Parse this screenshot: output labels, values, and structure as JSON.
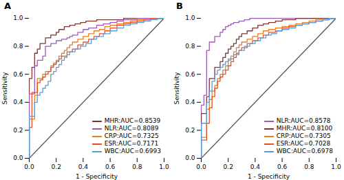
{
  "chart_data": [
    {
      "type": "line",
      "title": "A",
      "xlabel": "1 - Specificity",
      "ylabel": "Sensitivity",
      "xlim": [
        0,
        1
      ],
      "ylim": [
        0,
        1
      ],
      "xticks": [
        {
          "value": 0,
          "label": "0.0"
        },
        0.2,
        0.4,
        0.6,
        0.8,
        {
          "value": 1,
          "label": "1.0"
        }
      ],
      "yticks": [
        {
          "value": 0,
          "label": "0.0"
        },
        0.2,
        0.4,
        0.6,
        0.8,
        {
          "value": 1,
          "label": "1.0"
        }
      ],
      "grid": false,
      "legend": "lower right",
      "series": [
        {
          "type": "line",
          "color": "#555555",
          "x": [
            0,
            1
          ],
          "values": [
            0,
            1
          ]
        },
        {
          "name": "MHR:AUC=0.8539",
          "type": "step",
          "color": "#7B3535",
          "x": [
            0.0,
            0.0,
            0.02,
            0.02,
            0.04,
            0.04,
            0.06,
            0.06,
            0.08,
            0.08,
            0.1,
            0.12,
            0.12,
            0.14,
            0.16,
            0.18,
            0.2,
            0.22,
            0.22,
            0.24,
            0.26,
            0.28,
            0.3,
            0.32,
            0.34,
            0.36,
            0.38,
            0.4,
            0.42,
            0.44,
            0.5,
            0.55,
            0.6,
            0.65,
            0.7,
            0.75,
            0.8,
            0.85,
            0.9,
            0.95,
            1.0
          ],
          "values": [
            0.0,
            0.57,
            0.57,
            0.65,
            0.65,
            0.75,
            0.75,
            0.78,
            0.78,
            0.82,
            0.82,
            0.82,
            0.86,
            0.86,
            0.88,
            0.88,
            0.9,
            0.9,
            0.92,
            0.92,
            0.94,
            0.94,
            0.95,
            0.95,
            0.96,
            0.96,
            0.97,
            0.97,
            0.98,
            0.98,
            0.99,
            0.99,
            0.99,
            0.99,
            1.0,
            1.0,
            1.0,
            1.0,
            1.0,
            1.0,
            1.0
          ]
        },
        {
          "name": "NLR:AUC=0.8089",
          "type": "step",
          "color": "#9B59B6",
          "x": [
            0.0,
            0.0,
            0.02,
            0.04,
            0.04,
            0.06,
            0.06,
            0.08,
            0.1,
            0.1,
            0.12,
            0.12,
            0.14,
            0.16,
            0.18,
            0.2,
            0.22,
            0.24,
            0.26,
            0.28,
            0.3,
            0.32,
            0.36,
            0.4,
            0.44,
            0.5,
            0.55,
            0.6,
            0.65,
            0.7,
            0.75,
            0.8,
            0.85,
            0.9,
            0.95,
            1.0
          ],
          "values": [
            0.0,
            0.46,
            0.46,
            0.46,
            0.66,
            0.66,
            0.7,
            0.7,
            0.7,
            0.73,
            0.73,
            0.8,
            0.8,
            0.82,
            0.82,
            0.84,
            0.84,
            0.85,
            0.85,
            0.86,
            0.87,
            0.88,
            0.9,
            0.92,
            0.93,
            0.95,
            0.96,
            0.97,
            0.98,
            0.99,
            0.99,
            1.0,
            1.0,
            1.0,
            1.0,
            1.0
          ]
        },
        {
          "name": "CRP:AUC=0.7325",
          "type": "step",
          "color": "#E67E22",
          "x": [
            0.0,
            0.0,
            0.02,
            0.04,
            0.06,
            0.06,
            0.08,
            0.1,
            0.12,
            0.14,
            0.16,
            0.18,
            0.2,
            0.22,
            0.24,
            0.26,
            0.28,
            0.3,
            0.32,
            0.36,
            0.4,
            0.44,
            0.48,
            0.52,
            0.56,
            0.6,
            0.65,
            0.7,
            0.75,
            0.8,
            0.85,
            0.9,
            0.95,
            1.0
          ],
          "values": [
            0.0,
            0.28,
            0.28,
            0.45,
            0.45,
            0.57,
            0.57,
            0.6,
            0.62,
            0.62,
            0.66,
            0.68,
            0.7,
            0.73,
            0.75,
            0.77,
            0.79,
            0.81,
            0.83,
            0.85,
            0.87,
            0.89,
            0.91,
            0.92,
            0.94,
            0.95,
            0.96,
            0.97,
            0.98,
            0.99,
            0.99,
            1.0,
            1.0,
            1.0
          ]
        },
        {
          "name": "ESR:AUC=0.7171",
          "type": "step",
          "color": "#E8502A",
          "x": [
            0.0,
            0.0,
            0.02,
            0.02,
            0.04,
            0.06,
            0.08,
            0.1,
            0.12,
            0.14,
            0.16,
            0.18,
            0.2,
            0.22,
            0.24,
            0.28,
            0.32,
            0.36,
            0.4,
            0.44,
            0.48,
            0.52,
            0.56,
            0.6,
            0.65,
            0.7,
            0.75,
            0.8,
            0.85,
            0.9,
            0.95,
            1.0
          ],
          "values": [
            0.0,
            0.22,
            0.22,
            0.47,
            0.47,
            0.54,
            0.56,
            0.58,
            0.6,
            0.62,
            0.65,
            0.67,
            0.69,
            0.71,
            0.73,
            0.76,
            0.78,
            0.81,
            0.83,
            0.85,
            0.87,
            0.89,
            0.91,
            0.93,
            0.95,
            0.96,
            0.97,
            0.98,
            0.99,
            1.0,
            1.0,
            1.0
          ]
        },
        {
          "name": "WBC:AUC=0.6993",
          "type": "step",
          "color": "#5B9BD5",
          "x": [
            0.0,
            0.0,
            0.02,
            0.04,
            0.06,
            0.08,
            0.1,
            0.12,
            0.14,
            0.16,
            0.18,
            0.2,
            0.22,
            0.24,
            0.26,
            0.28,
            0.3,
            0.34,
            0.38,
            0.42,
            0.46,
            0.5,
            0.55,
            0.6,
            0.65,
            0.7,
            0.75,
            0.8,
            0.85,
            0.9,
            0.95,
            1.0
          ],
          "values": [
            0.0,
            0.3,
            0.3,
            0.4,
            0.45,
            0.47,
            0.5,
            0.52,
            0.55,
            0.6,
            0.62,
            0.65,
            0.67,
            0.7,
            0.72,
            0.74,
            0.76,
            0.78,
            0.8,
            0.82,
            0.85,
            0.87,
            0.89,
            0.91,
            0.93,
            0.95,
            0.96,
            0.97,
            0.98,
            0.99,
            1.0,
            1.0
          ]
        }
      ]
    },
    {
      "type": "line",
      "title": "B",
      "xlabel": "1 - Specificity",
      "ylabel": "Sensitivity",
      "xlim": [
        0,
        1
      ],
      "ylim": [
        0,
        1
      ],
      "xticks": [
        {
          "value": 0,
          "label": "0.0"
        },
        0.2,
        0.4,
        0.6,
        0.8,
        {
          "value": 1,
          "label": "1.0"
        }
      ],
      "yticks": [
        {
          "value": 0,
          "label": "0.0"
        },
        0.2,
        0.4,
        0.6,
        0.8,
        {
          "value": 1,
          "label": "1.0"
        }
      ],
      "grid": false,
      "legend": "lower right",
      "series": [
        {
          "type": "line",
          "color": "#555555",
          "x": [
            0,
            1
          ],
          "values": [
            0,
            1
          ]
        },
        {
          "name": "NLR:AUC=0.8578",
          "type": "step",
          "color": "#9B59B6",
          "x": [
            0.0,
            0.0,
            0.02,
            0.02,
            0.04,
            0.04,
            0.06,
            0.06,
            0.08,
            0.1,
            0.1,
            0.12,
            0.14,
            0.16,
            0.18,
            0.2,
            0.22,
            0.24,
            0.28,
            0.32,
            0.36,
            0.4,
            0.44,
            0.5,
            0.55,
            0.6,
            0.65,
            0.7,
            0.75,
            0.8,
            0.85,
            0.9,
            0.95,
            1.0
          ],
          "values": [
            0.0,
            0.38,
            0.38,
            0.45,
            0.45,
            0.77,
            0.77,
            0.83,
            0.83,
            0.83,
            0.87,
            0.87,
            0.9,
            0.92,
            0.94,
            0.95,
            0.96,
            0.97,
            0.98,
            0.99,
            1.0,
            1.0,
            1.0,
            1.0,
            1.0,
            1.0,
            1.0,
            1.0,
            1.0,
            1.0,
            1.0,
            1.0,
            1.0,
            1.0
          ]
        },
        {
          "name": "MHR:AUC=0.8100",
          "type": "step",
          "color": "#7B3535",
          "x": [
            0.0,
            0.0,
            0.02,
            0.04,
            0.04,
            0.06,
            0.06,
            0.08,
            0.1,
            0.1,
            0.12,
            0.14,
            0.16,
            0.18,
            0.2,
            0.22,
            0.24,
            0.26,
            0.28,
            0.3,
            0.34,
            0.38,
            0.42,
            0.46,
            0.5,
            0.55,
            0.6,
            0.65,
            0.7,
            0.8,
            0.9,
            1.0
          ],
          "values": [
            0.0,
            0.32,
            0.32,
            0.32,
            0.44,
            0.44,
            0.57,
            0.57,
            0.57,
            0.65,
            0.65,
            0.69,
            0.72,
            0.75,
            0.78,
            0.8,
            0.82,
            0.85,
            0.87,
            0.89,
            0.91,
            0.93,
            0.95,
            0.96,
            0.97,
            0.98,
            0.99,
            0.99,
            1.0,
            1.0,
            1.0,
            1.0
          ]
        },
        {
          "name": "CRP:AUC=0.7305",
          "type": "step",
          "color": "#E67E22",
          "x": [
            0.0,
            0.0,
            0.02,
            0.04,
            0.06,
            0.08,
            0.1,
            0.12,
            0.14,
            0.16,
            0.18,
            0.2,
            0.22,
            0.24,
            0.26,
            0.28,
            0.3,
            0.34,
            0.38,
            0.42,
            0.46,
            0.5,
            0.55,
            0.6,
            0.65,
            0.7,
            0.75,
            0.8,
            0.85,
            0.9,
            0.95,
            1.0
          ],
          "values": [
            0.0,
            0.15,
            0.15,
            0.35,
            0.42,
            0.48,
            0.52,
            0.57,
            0.6,
            0.63,
            0.66,
            0.7,
            0.73,
            0.76,
            0.79,
            0.81,
            0.83,
            0.85,
            0.87,
            0.89,
            0.91,
            0.92,
            0.93,
            0.94,
            0.95,
            0.96,
            0.97,
            0.98,
            0.99,
            0.99,
            1.0,
            1.0
          ]
        },
        {
          "name": "ESR:AUC=0.7028",
          "type": "step",
          "color": "#E8502A",
          "x": [
            0.0,
            0.0,
            0.02,
            0.04,
            0.06,
            0.08,
            0.1,
            0.12,
            0.14,
            0.16,
            0.18,
            0.2,
            0.22,
            0.24,
            0.26,
            0.28,
            0.3,
            0.34,
            0.38,
            0.42,
            0.46,
            0.5,
            0.55,
            0.6,
            0.65,
            0.7,
            0.75,
            0.8,
            0.85,
            0.9,
            0.95,
            1.0
          ],
          "values": [
            0.0,
            0.13,
            0.13,
            0.25,
            0.36,
            0.44,
            0.5,
            0.55,
            0.58,
            0.6,
            0.63,
            0.66,
            0.69,
            0.72,
            0.75,
            0.77,
            0.79,
            0.82,
            0.84,
            0.86,
            0.88,
            0.9,
            0.91,
            0.93,
            0.94,
            0.95,
            0.96,
            0.97,
            0.98,
            0.99,
            1.0,
            1.0
          ]
        },
        {
          "name": "WBC:AUC=0.6978",
          "type": "step",
          "color": "#5B9BD5",
          "x": [
            0.0,
            0.0,
            0.02,
            0.04,
            0.06,
            0.08,
            0.1,
            0.12,
            0.14,
            0.16,
            0.18,
            0.2,
            0.24,
            0.28,
            0.32,
            0.36,
            0.4,
            0.44,
            0.48,
            0.52,
            0.56,
            0.6,
            0.65,
            0.7,
            0.75,
            0.8,
            0.85,
            0.9,
            0.95,
            1.0
          ],
          "values": [
            0.0,
            0.25,
            0.25,
            0.4,
            0.48,
            0.55,
            0.6,
            0.63,
            0.65,
            0.67,
            0.69,
            0.71,
            0.74,
            0.77,
            0.8,
            0.82,
            0.84,
            0.86,
            0.88,
            0.89,
            0.91,
            0.92,
            0.93,
            0.95,
            0.96,
            0.97,
            0.98,
            0.99,
            1.0,
            1.0
          ]
        }
      ]
    }
  ]
}
